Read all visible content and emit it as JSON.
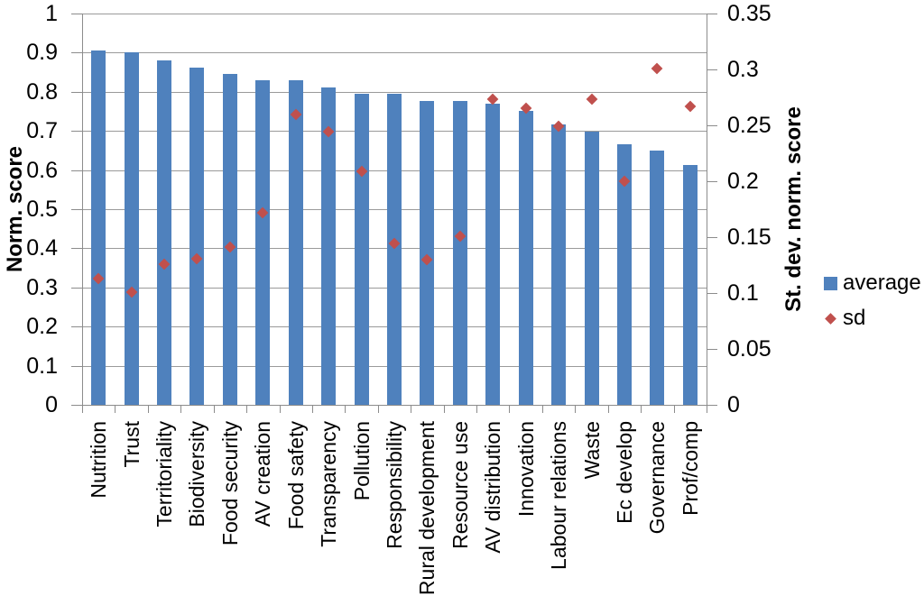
{
  "chart_data": {
    "type": "bar",
    "title": "",
    "categories": [
      "Nutrition",
      "Trust",
      "Territoriality",
      "Biodiversity",
      "Food security",
      "AV creation",
      "Food safety",
      "Transparency",
      "Pollution",
      "Responsibility",
      "Rural development",
      "Resource use",
      "AV distribution",
      "Innovation",
      "Labour relations",
      "Waste",
      "Ec develop",
      "Governance",
      "Prof/comp"
    ],
    "series": [
      {
        "name": "average",
        "type": "bar",
        "axis": "left",
        "color": "#4F81BD",
        "values": [
          0.906,
          0.9,
          0.881,
          0.862,
          0.846,
          0.829,
          0.829,
          0.81,
          0.795,
          0.794,
          0.777,
          0.777,
          0.769,
          0.752,
          0.717,
          0.699,
          0.667,
          0.649,
          0.614
        ]
      },
      {
        "name": "sd",
        "type": "scatter",
        "marker": "diamond",
        "axis": "right",
        "color": "#C0504D",
        "values": [
          0.113,
          0.101,
          0.126,
          0.131,
          0.141,
          0.172,
          0.26,
          0.244,
          0.209,
          0.144,
          0.13,
          0.151,
          0.273,
          0.265,
          0.249,
          0.273,
          0.2,
          0.301,
          0.267
        ]
      }
    ],
    "left_axis": {
      "label": "Norm. score",
      "min": 0,
      "max": 1,
      "tick_step": 0.1,
      "tick_labels": [
        "1",
        "0.9",
        "0.8",
        "0.7",
        "0.6",
        "0.5",
        "0.4",
        "0.3",
        "0.2",
        "0.1",
        "0"
      ]
    },
    "right_axis": {
      "label": "St. dev. norm. score",
      "min": 0,
      "max": 0.35,
      "tick_step": 0.05,
      "tick_labels": [
        "0.35",
        "0.3",
        "0.25",
        "0.2",
        "0.15",
        "0.1",
        "0.05",
        "0"
      ]
    },
    "legend": {
      "position": "right",
      "entries": [
        {
          "label": "average",
          "marker": "square",
          "color": "#4F81BD"
        },
        {
          "label": "sd",
          "marker": "diamond",
          "color": "#C0504D"
        }
      ]
    },
    "grid": true,
    "colors": {
      "gridline": "#9A9A9A",
      "axis_line": "#8C8C8C",
      "text": "#000000",
      "background": "#FFFFFF"
    }
  }
}
